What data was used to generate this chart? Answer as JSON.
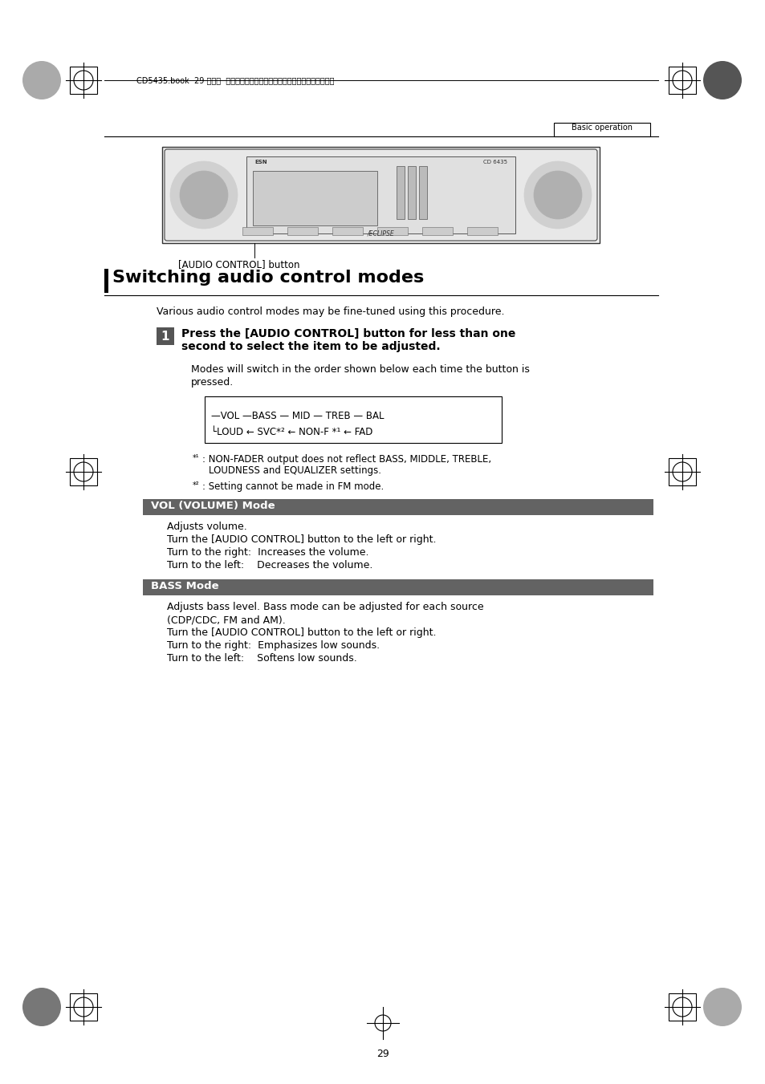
{
  "bg_color": "#ffffff",
  "page_number": "29",
  "header_text": "CD5435.book  29 ページ  ２００４年１２月１１日　土曜日　午後５時２９分",
  "header_box_text": "Basic operation",
  "section_title": "Switching audio control modes",
  "intro_text": "Various audio control modes may be fine-tuned using this procedure.",
  "step1_line1": "Press the [AUDIO CONTROL] button for less than one",
  "step1_line2": "second to select the item to be adjusted.",
  "modes_intro1": "Modes will switch in the order shown below each time the button is",
  "modes_intro2": "pressed.",
  "footnote1a": "*¹: NON-FADER output does not reflect BASS, MIDDLE, TREBLE,",
  "footnote1b": "    LOUDNESS and EQUALIZER settings.",
  "footnote2": "*²: Setting cannot be made in FM mode.",
  "vol_header": "VOL (VOLUME) Mode",
  "vol_lines": [
    "Adjusts volume.",
    "Turn the [AUDIO CONTROL] button to the left or right.",
    "Turn to the right:  Increases the volume.",
    "Turn to the left:    Decreases the volume."
  ],
  "bass_header": "BASS Mode",
  "bass_lines": [
    "Adjusts bass level. Bass mode can be adjusted for each source",
    "(CDP/CDC, FM and AM).",
    "Turn the [AUDIO CONTROL] button to the left or right.",
    "Turn to the right:  Emphasizes low sounds.",
    "Turn to the left:    Softens low sounds."
  ],
  "audio_control_label": "[AUDIO CONTROL] button",
  "header_bar_color": "#666666"
}
